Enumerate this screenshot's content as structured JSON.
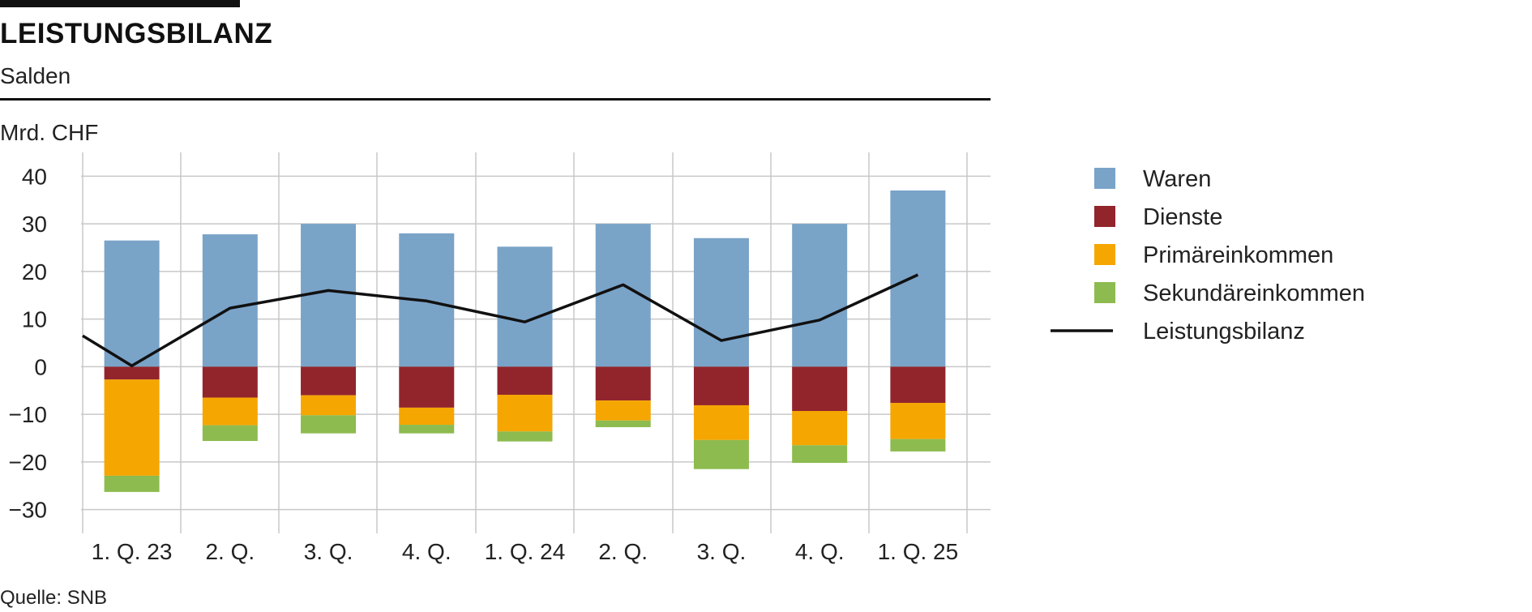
{
  "header": {
    "title": "LEISTUNGSBILANZ",
    "subtitle": "Salden"
  },
  "footer": {
    "source": "Quelle: SNB"
  },
  "chart_data": {
    "type": "bar",
    "stacked": true,
    "ylabel": "Mrd. CHF",
    "ylim": [
      -35,
      45
    ],
    "yticks": [
      40,
      30,
      20,
      10,
      0,
      -10,
      -20,
      -30
    ],
    "ytick_labels": [
      "40",
      "30",
      "20",
      "10",
      "0",
      "−10",
      "−20",
      "−30"
    ],
    "categories": [
      "1. Q. 23",
      "2. Q.",
      "3. Q.",
      "4. Q.",
      "1. Q. 24",
      "2. Q.",
      "3. Q.",
      "4. Q.",
      "1. Q. 25"
    ],
    "grid": true,
    "legend_position": "right",
    "series": [
      {
        "name": "Waren",
        "kind": "bar",
        "color": "#7aa3c8",
        "values": [
          26.5,
          27.8,
          30,
          28,
          25.2,
          30,
          27,
          30,
          37
        ]
      },
      {
        "name": "Dienste",
        "kind": "bar",
        "color": "#92252c",
        "values": [
          -2.7,
          -6.5,
          -6,
          -8.6,
          -5.9,
          -7.1,
          -8.1,
          -9.3,
          -7.6
        ]
      },
      {
        "name": "Primäreinkommen",
        "kind": "bar",
        "color": "#f5a600",
        "values": [
          -20.2,
          -5.8,
          -4.2,
          -3.6,
          -7.7,
          -4.2,
          -7.3,
          -7.2,
          -7.6
        ]
      },
      {
        "name": "Sekundäreinkommen",
        "kind": "bar",
        "color": "#8dbb4f",
        "values": [
          -3.4,
          -3.3,
          -3.8,
          -1.8,
          -2.1,
          -1.4,
          -6.1,
          -3.7,
          -2.6
        ]
      },
      {
        "name": "Leistungsbilanz",
        "kind": "line",
        "color": "#111111",
        "values": [
          0.2,
          12.3,
          16,
          13.8,
          9.4,
          17.2,
          5.5,
          9.8,
          19.3
        ],
        "start_value": 6.5
      }
    ]
  }
}
